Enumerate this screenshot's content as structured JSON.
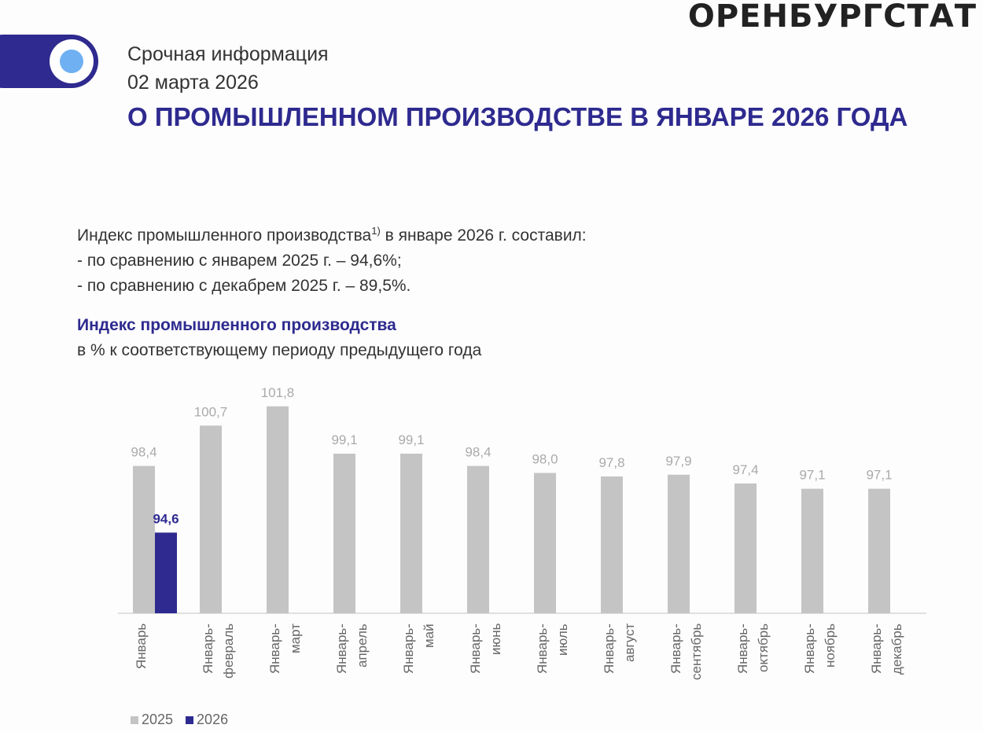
{
  "brand": "ОРЕНБУРГСТАТ",
  "header": {
    "kind": "Срочная информация",
    "date": "02 марта 2026",
    "title": "О ПРОМЫШЛЕННОМ ПРОИЗВОДСТВЕ В ЯНВАРЕ 2026 ГОДА"
  },
  "intro": {
    "line1_a": "Индекс промышленного производства",
    "line1_sup": "1)",
    "line1_b": " в январе 2026 г. составил:",
    "line2": "- по сравнению с январем 2025 г. – 94,6%;",
    "line3": "- по сравнению с декабрем 2025 г. – 89,5%."
  },
  "colors": {
    "s2025": "#c4c4c4",
    "s2026": "#2e2a8f",
    "accent": "#2e2a8f"
  },
  "chart_data": {
    "type": "bar",
    "title": "Индекс промышленного производства",
    "subtitle": "в % к соответствующему периоду предыдущего года",
    "categories": [
      [
        "Январь"
      ],
      [
        "Январь-",
        "февраль"
      ],
      [
        "Январь-",
        "март"
      ],
      [
        "Январь-",
        "апрель"
      ],
      [
        "Январь-",
        "май"
      ],
      [
        "Январь-",
        "июнь"
      ],
      [
        "Январь-",
        "июль"
      ],
      [
        "Январь-",
        "август"
      ],
      [
        "Январь-",
        "сентябрь"
      ],
      [
        "Январь-",
        "октябрь"
      ],
      [
        "Январь-",
        "ноябрь"
      ],
      [
        "Январь-",
        "декабрь"
      ]
    ],
    "series": [
      {
        "name": "2025",
        "values": [
          98.4,
          100.7,
          101.8,
          99.1,
          99.1,
          98.4,
          98.0,
          97.8,
          97.9,
          97.4,
          97.1,
          97.1
        ],
        "labels": [
          "98,4",
          "100,7",
          "101,8",
          "99,1",
          "99,1",
          "98,4",
          "98,0",
          "97,8",
          "97,9",
          "97,4",
          "97,1",
          "97,1"
        ]
      },
      {
        "name": "2026",
        "values": [
          94.6,
          null,
          null,
          null,
          null,
          null,
          null,
          null,
          null,
          null,
          null,
          null
        ],
        "labels": [
          "94,6"
        ]
      }
    ],
    "ylim": [
      90,
      103
    ],
    "grid": false,
    "legend": "bottom-left"
  }
}
